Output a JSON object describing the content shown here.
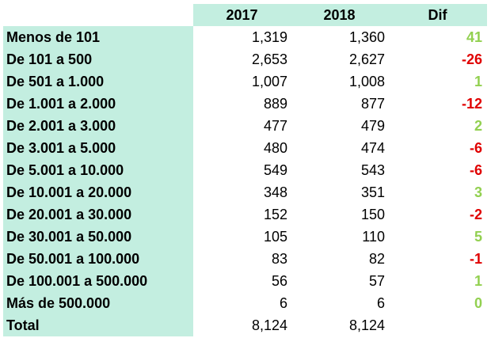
{
  "header": {
    "col0": "",
    "col1": "2017",
    "col2": "2018",
    "col3": "Dif"
  },
  "colors": {
    "label_bg": "#c3eee0",
    "positive": "#92d050",
    "negative": "#e00000"
  },
  "rows": [
    {
      "label": "Menos de 101",
      "y2017": "1,319",
      "y2018": "1,360",
      "dif": "41",
      "sign": "positive"
    },
    {
      "label": "De 101 a 500",
      "y2017": "2,653",
      "y2018": "2,627",
      "dif": "-26",
      "sign": "negative"
    },
    {
      "label": "De 501 a 1.000",
      "y2017": "1,007",
      "y2018": "1,008",
      "dif": "1",
      "sign": "positive"
    },
    {
      "label": "De 1.001 a 2.000",
      "y2017": "889",
      "y2018": "877",
      "dif": "-12",
      "sign": "negative"
    },
    {
      "label": "De 2.001 a 3.000",
      "y2017": "477",
      "y2018": "479",
      "dif": "2",
      "sign": "positive"
    },
    {
      "label": "De 3.001 a 5.000",
      "y2017": "480",
      "y2018": "474",
      "dif": "-6",
      "sign": "negative"
    },
    {
      "label": "De 5.001 a 10.000",
      "y2017": "549",
      "y2018": "543",
      "dif": "-6",
      "sign": "negative"
    },
    {
      "label": "De 10.001 a 20.000",
      "y2017": "348",
      "y2018": "351",
      "dif": "3",
      "sign": "positive"
    },
    {
      "label": "De 20.001 a 30.000",
      "y2017": "152",
      "y2018": "150",
      "dif": "-2",
      "sign": "negative"
    },
    {
      "label": "De 30.001 a 50.000",
      "y2017": "105",
      "y2018": "110",
      "dif": "5",
      "sign": "positive"
    },
    {
      "label": "De 50.001 a 100.000",
      "y2017": "83",
      "y2018": "82",
      "dif": "-1",
      "sign": "negative"
    },
    {
      "label": "De 100.001 a 500.000",
      "y2017": "56",
      "y2018": "57",
      "dif": "1",
      "sign": "positive"
    },
    {
      "label": "Más de 500.000",
      "y2017": "6",
      "y2018": "6",
      "dif": "0",
      "sign": "positive"
    }
  ],
  "total": {
    "label": "Total",
    "y2017": "8,124",
    "y2018": "8,124",
    "dif": ""
  }
}
